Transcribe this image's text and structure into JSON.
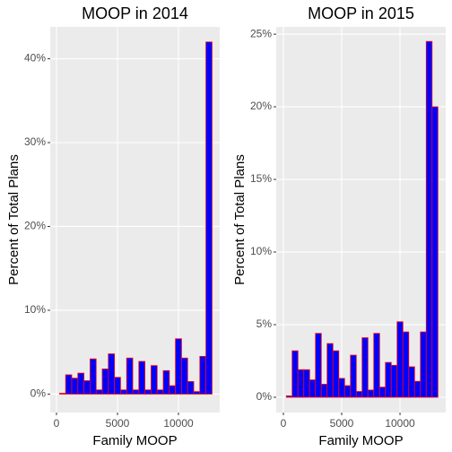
{
  "chart_data": [
    {
      "type": "histogram",
      "title": "MOOP in 2014",
      "xlabel": "Family MOOP",
      "ylabel": "Percent of Total Plans",
      "bins": [
        250,
        750,
        1250,
        1750,
        2250,
        2750,
        3250,
        3750,
        4250,
        4750,
        5250,
        5750,
        6250,
        6750,
        7250,
        7750,
        8250,
        8750,
        9250,
        9750,
        10250,
        10750,
        11250,
        11750,
        12250,
        12750
      ],
      "values": [
        0.1,
        2.3,
        1.9,
        2.5,
        1.6,
        4.2,
        0.5,
        3.0,
        4.8,
        2.0,
        0.5,
        4.3,
        0.5,
        3.9,
        0.5,
        3.4,
        0.5,
        2.8,
        1.0,
        6.6,
        4.3,
        1.5,
        0.3,
        4.5,
        42.0
      ],
      "color": "#0000ff",
      "edgecolor": "#ff0000",
      "xlim": [
        -515,
        13380
      ],
      "xticks": [
        0,
        5000,
        10000
      ],
      "ylim": [
        -2.2,
        43.8
      ],
      "yticks": [
        {
          "value": 0,
          "label": "0%"
        },
        {
          "value": 10,
          "label": "10%"
        },
        {
          "value": 20,
          "label": "20%"
        },
        {
          "value": 30,
          "label": "30%"
        },
        {
          "value": 40,
          "label": "40%"
        }
      ],
      "grid": true
    },
    {
      "type": "histogram",
      "title": "MOOP in 2015",
      "xlabel": "Family MOOP",
      "ylabel": "Percent of Total Plans",
      "bins": [
        250,
        750,
        1250,
        1750,
        2250,
        2750,
        3250,
        3750,
        4250,
        4750,
        5250,
        5750,
        6250,
        6750,
        7250,
        7750,
        8250,
        8750,
        9250,
        9750,
        10250,
        10750,
        11250,
        11750,
        12250,
        12750,
        13250
      ],
      "values": [
        0.1,
        3.2,
        1.9,
        1.9,
        1.2,
        4.4,
        0.9,
        3.7,
        3.2,
        1.3,
        0.8,
        2.9,
        0.4,
        4.1,
        0.5,
        4.4,
        0.7,
        2.4,
        2.2,
        5.2,
        4.5,
        2.1,
        1.1,
        4.5,
        24.5,
        20.0
      ],
      "color": "#0000ff",
      "edgecolor": "#ff0000",
      "xlim": [
        -615,
        13920
      ],
      "xticks": [
        0,
        5000,
        10000
      ],
      "ylim": [
        -1.05,
        25.5
      ],
      "yticks": [
        {
          "value": 0,
          "label": "0%"
        },
        {
          "value": 5,
          "label": "5%"
        },
        {
          "value": 10,
          "label": "10%"
        },
        {
          "value": 15,
          "label": "15%"
        },
        {
          "value": 20,
          "label": "20%"
        },
        {
          "value": 25,
          "label": "25%"
        }
      ],
      "grid": true
    }
  ]
}
